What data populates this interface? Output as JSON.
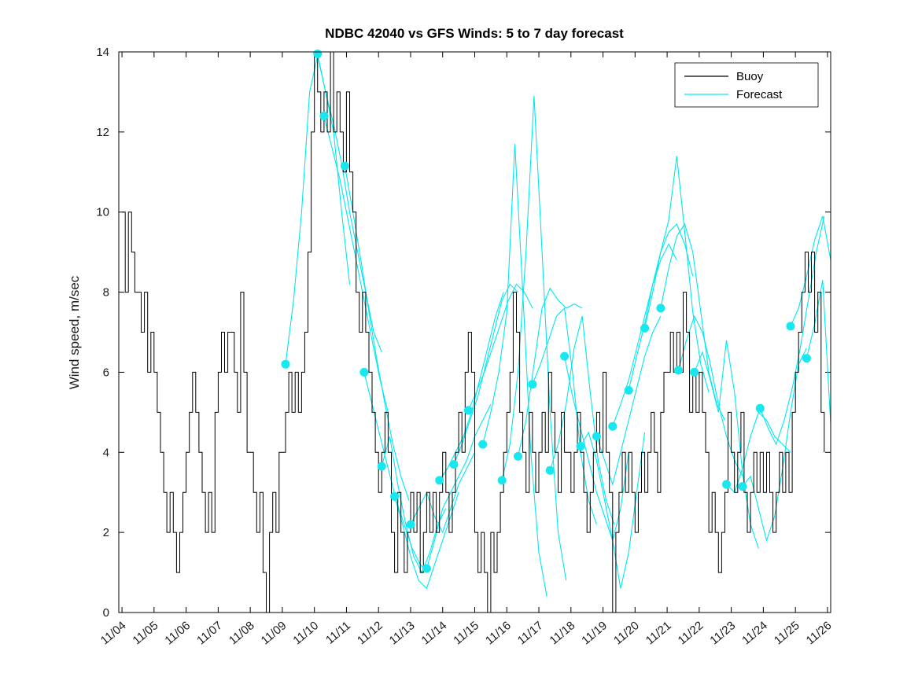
{
  "title": "NDBC 42040 vs GFS Winds: 5 to 7 day forecast",
  "chart_data": {
    "type": "line",
    "title": "NDBC 42040 vs GFS Winds: 5 to 7 day forecast",
    "xlabel": "",
    "ylabel": "Wind speed, m/sec",
    "ylim": [
      0,
      14
    ],
    "yticks": [
      0,
      2,
      4,
      6,
      8,
      10,
      12,
      14
    ],
    "xtick_labels": [
      "11/04",
      "11/05",
      "11/06",
      "11/07",
      "11/08",
      "11/09",
      "11/10",
      "11/11",
      "11/12",
      "11/13",
      "11/14",
      "11/15",
      "11/16",
      "11/17",
      "11/18",
      "11/19",
      "11/20",
      "11/21",
      "11/22",
      "11/23",
      "11/24",
      "11/25",
      "11/26"
    ],
    "grid": false,
    "colors": {
      "buoy": "#000000",
      "forecast": "#00e7ef",
      "marker": "#17e7ee"
    },
    "legend": {
      "position": "top-right",
      "entries": [
        {
          "label": "Buoy",
          "color": "#000000"
        },
        {
          "label": "Forecast",
          "color": "#00e7ef"
        }
      ]
    },
    "buoy": {
      "units": "m/sec",
      "t0": 0,
      "dt": 0.1,
      "values": [
        10,
        8,
        10,
        9,
        8,
        8,
        7,
        8,
        6,
        7,
        6,
        5,
        4,
        3,
        2,
        3,
        2,
        1,
        2,
        3,
        4,
        5,
        6,
        5,
        4,
        3,
        2,
        3,
        2,
        5,
        6,
        7,
        6,
        7,
        7,
        6,
        5,
        8,
        6,
        4,
        4,
        3,
        2,
        3,
        1,
        0,
        2,
        3,
        2,
        4,
        4,
        5,
        6,
        5,
        6,
        5,
        6,
        7,
        9,
        12,
        14,
        13,
        12,
        13,
        12,
        14,
        12,
        13,
        12,
        11,
        13,
        11,
        10,
        8,
        7,
        8,
        7,
        6,
        5,
        4,
        3,
        4,
        5,
        4,
        2,
        1,
        3,
        2,
        1,
        2,
        3,
        2,
        3,
        1,
        2,
        3,
        2,
        3,
        2,
        3,
        4,
        3,
        2,
        3,
        4,
        5,
        4,
        6,
        7,
        6,
        2,
        1,
        2,
        1,
        0,
        2,
        1,
        2,
        3,
        4,
        5,
        6,
        8,
        7,
        5,
        4,
        3,
        5,
        4,
        3,
        4,
        5,
        4,
        6,
        5,
        4,
        3,
        5,
        4,
        4,
        3,
        4,
        5,
        4,
        3,
        2,
        3,
        4,
        5,
        4,
        6,
        4,
        3,
        0,
        2,
        3,
        4,
        3,
        4,
        3,
        2,
        3,
        4,
        3,
        4,
        5,
        4,
        3,
        5,
        6,
        6,
        7,
        6,
        7,
        6,
        8,
        7,
        5,
        6,
        5,
        6,
        5,
        4,
        2,
        3,
        2,
        1,
        2,
        3,
        5,
        4,
        3,
        4,
        5,
        3,
        2,
        3,
        4,
        3,
        4,
        3,
        4,
        3,
        2,
        3,
        4,
        3,
        4,
        3,
        5,
        6,
        7,
        8,
        9,
        8,
        9,
        7,
        8,
        5,
        4
      ]
    },
    "forecasts": [
      {
        "t0": 5.1,
        "dt": 0.25,
        "values": [
          6.2,
          7.8,
          10,
          13,
          13.9,
          13,
          12,
          10,
          8.2
        ]
      },
      {
        "t0": 6.1,
        "dt": 0.25,
        "values": [
          13.95,
          13,
          12.2,
          11.2,
          10,
          9,
          8,
          7,
          6.5
        ]
      },
      {
        "t0": 6.3,
        "dt": 0.25,
        "values": [
          12.4,
          11.6,
          10.8,
          9.8,
          8.8,
          7.8,
          6.8,
          5.8,
          5.0
        ]
      },
      {
        "t0": 6.95,
        "dt": 0.25,
        "values": [
          11.15,
          10,
          8.8,
          7.5,
          6.3,
          5.2,
          4.2,
          3.4,
          2.8
        ]
      },
      {
        "t0": 7.55,
        "dt": 0.25,
        "values": [
          6.0,
          5.2,
          4.4,
          3.6,
          2.8,
          2.2,
          1.6,
          1.2,
          1.0
        ]
      },
      {
        "t0": 8.1,
        "dt": 0.25,
        "values": [
          3.65,
          4.4,
          3.2,
          2.2,
          1.4,
          1.0,
          1.5,
          2.2,
          2.6
        ]
      },
      {
        "t0": 8.5,
        "dt": 0.25,
        "values": [
          2.9,
          2.2,
          1.4,
          0.8,
          0.6,
          1.2,
          1.8,
          2.4,
          3.0
        ]
      },
      {
        "t0": 9.0,
        "dt": 0.25,
        "values": [
          2.2,
          2.6,
          3.0,
          2.4,
          2.0,
          2.6,
          3.2,
          3.6,
          4.0
        ]
      },
      {
        "t0": 9.5,
        "dt": 0.25,
        "values": [
          1.1,
          1.8,
          2.6,
          3.0,
          3.4,
          3.8,
          4.4,
          4.8,
          5.2
        ]
      },
      {
        "t0": 9.9,
        "dt": 0.25,
        "values": [
          3.3,
          3.6,
          4.0,
          4.4,
          5.0,
          5.8,
          6.6,
          7.4,
          8.0
        ]
      },
      {
        "t0": 10.35,
        "dt": 0.25,
        "values": [
          3.7,
          4.2,
          4.8,
          5.4,
          6.2,
          7.0,
          7.8,
          8.2,
          8.0
        ]
      },
      {
        "t0": 10.8,
        "dt": 0.25,
        "values": [
          5.05,
          5.5,
          6.0,
          6.6,
          7.2,
          7.8,
          8.2,
          8.0,
          7.6
        ]
      },
      {
        "t0": 11.25,
        "dt": 0.25,
        "values": [
          4.2,
          5.0,
          6.0,
          7.5,
          11.7,
          8.0,
          4.0,
          1.5,
          0.4
        ]
      },
      {
        "t0": 11.85,
        "dt": 0.25,
        "values": [
          3.3,
          4.2,
          6.0,
          9.0,
          12.9,
          9.0,
          5.0,
          2.0,
          0.8
        ]
      },
      {
        "t0": 12.35,
        "dt": 0.25,
        "values": [
          3.9,
          4.8,
          6.2,
          7.6,
          8.1,
          7.8,
          7.6,
          7.7,
          7.6
        ]
      },
      {
        "t0": 12.8,
        "dt": 0.25,
        "values": [
          5.7,
          6.2,
          6.8,
          7.4,
          7.6,
          6.0,
          4.0,
          2.8,
          2.2
        ]
      },
      {
        "t0": 13.35,
        "dt": 0.25,
        "values": [
          3.55,
          4.2,
          5.2,
          6.6,
          7.4,
          5.5,
          3.8,
          2.8,
          2.2
        ]
      },
      {
        "t0": 13.8,
        "dt": 0.25,
        "values": [
          6.4,
          5.4,
          4.6,
          3.8,
          3.0,
          2.4,
          1.8,
          2.6,
          4.0
        ]
      },
      {
        "t0": 14.3,
        "dt": 0.25,
        "values": [
          4.15,
          4.5,
          3.8,
          2.8,
          1.8,
          0.6,
          1.5,
          3.0,
          4.5
        ]
      },
      {
        "t0": 14.8,
        "dt": 0.25,
        "values": [
          4.4,
          3.8,
          3.2,
          4.0,
          4.8,
          5.6,
          6.4,
          7.0,
          7.4
        ]
      },
      {
        "t0": 15.3,
        "dt": 0.25,
        "values": [
          4.65,
          5.2,
          5.8,
          6.6,
          7.4,
          8.2,
          8.8,
          9.2,
          8.8
        ]
      },
      {
        "t0": 15.8,
        "dt": 0.25,
        "values": [
          5.55,
          6.4,
          7.2,
          8.2,
          9.0,
          9.5,
          9.7,
          9.2,
          8.4
        ]
      },
      {
        "t0": 16.3,
        "dt": 0.25,
        "values": [
          7.1,
          8.0,
          9.0,
          9.8,
          11.4,
          9.5,
          7.5,
          6.2,
          5.5
        ]
      },
      {
        "t0": 16.8,
        "dt": 0.25,
        "values": [
          7.6,
          8.6,
          9.4,
          9.7,
          9.0,
          7.5,
          6.0,
          5.2,
          4.8
        ]
      },
      {
        "t0": 17.35,
        "dt": 0.25,
        "values": [
          6.05,
          6.8,
          7.4,
          7.0,
          6.2,
          5.2,
          4.4,
          3.8,
          3.4
        ]
      },
      {
        "t0": 17.85,
        "dt": 0.25,
        "values": [
          6.0,
          6.5,
          5.8,
          5.0,
          6.8,
          5.5,
          3.5,
          2.2,
          1.6
        ]
      },
      {
        "t0": 18.85,
        "dt": 0.25,
        "values": [
          3.2,
          3.0,
          3.6,
          4.4,
          5.0,
          4.8,
          4.4,
          4.2,
          4.0
        ]
      },
      {
        "t0": 19.35,
        "dt": 0.25,
        "values": [
          3.15,
          3.4,
          2.6,
          1.8,
          2.4,
          3.6,
          5.0,
          6.2,
          6.6
        ]
      },
      {
        "t0": 19.9,
        "dt": 0.25,
        "values": [
          5.1,
          4.6,
          4.2,
          4.8,
          5.6,
          6.6,
          7.8,
          9.0,
          9.9
        ]
      },
      {
        "t0": 20.85,
        "dt": 0.25,
        "values": [
          7.15,
          7.6,
          8.4,
          9.3,
          9.9,
          8.8
        ]
      },
      {
        "t0": 21.35,
        "dt": 0.25,
        "values": [
          6.35,
          7.2,
          8.3,
          4.7
        ]
      }
    ]
  }
}
